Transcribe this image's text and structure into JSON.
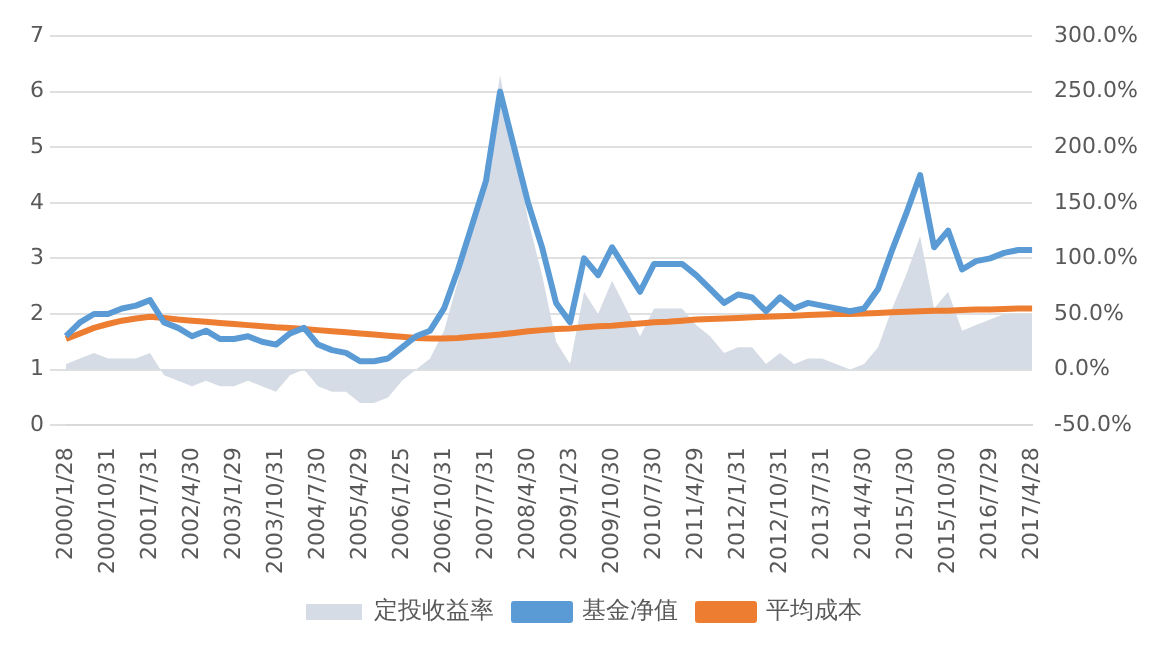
{
  "chart_data": {
    "type": "line",
    "categories": [
      "2000/1/28",
      null,
      null,
      "2000/10/31",
      null,
      null,
      "2001/7/31",
      null,
      null,
      "2002/4/30",
      null,
      null,
      "2003/1/29",
      null,
      null,
      "2003/10/31",
      null,
      null,
      "2004/7/30",
      null,
      null,
      "2005/4/29",
      null,
      null,
      "2006/1/25",
      null,
      null,
      "2006/10/31",
      null,
      null,
      "2007/7/31",
      null,
      null,
      "2008/4/30",
      null,
      null,
      "2009/1/23",
      null,
      null,
      "2009/10/30",
      null,
      null,
      "2010/7/30",
      null,
      null,
      "2011/4/29",
      null,
      null,
      "2012/1/31",
      null,
      null,
      "2012/10/31",
      null,
      null,
      "2013/7/31",
      null,
      null,
      "2014/4/30",
      null,
      null,
      "2015/1/30",
      null,
      null,
      "2015/10/30",
      null,
      null,
      "2016/7/29",
      null,
      null,
      "2017/4/28"
    ],
    "series": [
      {
        "name": "定投收益率",
        "type": "area",
        "axis": "y2",
        "color": "#d6dce5",
        "values": [
          5,
          10,
          15,
          10,
          10,
          10,
          15,
          -5,
          -10,
          -15,
          -10,
          -15,
          -15,
          -10,
          -15,
          -20,
          -5,
          0,
          -15,
          -20,
          -20,
          -30,
          -30,
          -25,
          -10,
          0,
          10,
          35,
          80,
          125,
          175,
          265,
          200,
          135,
          85,
          25,
          5,
          70,
          50,
          80,
          55,
          30,
          55,
          55,
          55,
          40,
          30,
          15,
          20,
          20,
          5,
          15,
          5,
          10,
          10,
          5,
          0,
          5,
          20,
          55,
          85,
          120,
          55,
          70,
          35,
          40,
          45,
          50,
          50,
          50
        ]
      },
      {
        "name": "基金净值",
        "color": "#5b9bd5",
        "values": [
          1.6,
          1.85,
          2.0,
          2.0,
          2.1,
          2.15,
          2.25,
          1.85,
          1.75,
          1.6,
          1.7,
          1.55,
          1.55,
          1.6,
          1.5,
          1.45,
          1.65,
          1.75,
          1.45,
          1.35,
          1.3,
          1.15,
          1.15,
          1.2,
          1.4,
          1.6,
          1.7,
          2.1,
          2.8,
          3.6,
          4.4,
          6.0,
          5.0,
          4.0,
          3.2,
          2.2,
          1.85,
          3.0,
          2.7,
          3.2,
          2.8,
          2.4,
          2.9,
          2.9,
          2.9,
          2.7,
          2.45,
          2.2,
          2.35,
          2.3,
          2.05,
          2.3,
          2.1,
          2.2,
          2.15,
          2.1,
          2.05,
          2.1,
          2.45,
          3.15,
          3.8,
          4.5,
          3.2,
          3.5,
          2.8,
          2.95,
          3.0,
          3.1,
          3.15,
          3.15
        ]
      },
      {
        "name": "平均成本",
        "color": "#ed7d31",
        "values": [
          1.55,
          1.65,
          1.75,
          1.82,
          1.88,
          1.92,
          1.95,
          1.93,
          1.9,
          1.88,
          1.86,
          1.84,
          1.82,
          1.8,
          1.78,
          1.76,
          1.75,
          1.73,
          1.71,
          1.69,
          1.67,
          1.65,
          1.63,
          1.61,
          1.59,
          1.57,
          1.56,
          1.56,
          1.57,
          1.59,
          1.61,
          1.63,
          1.66,
          1.69,
          1.71,
          1.73,
          1.74,
          1.76,
          1.78,
          1.79,
          1.81,
          1.83,
          1.85,
          1.86,
          1.88,
          1.9,
          1.91,
          1.92,
          1.93,
          1.94,
          1.95,
          1.96,
          1.97,
          1.98,
          1.99,
          2.0,
          2.0,
          2.01,
          2.02,
          2.03,
          2.04,
          2.05,
          2.06,
          2.06,
          2.07,
          2.08,
          2.08,
          2.09,
          2.1,
          2.1
        ]
      }
    ],
    "ylim": [
      0,
      7
    ],
    "yticks": [
      0,
      1,
      2,
      3,
      4,
      5,
      6,
      7
    ],
    "y2lim": [
      -50,
      300
    ],
    "y2ticks": [
      {
        "value": -50,
        "label": "-50.0%"
      },
      {
        "value": 0,
        "label": "0.0%"
      },
      {
        "value": 50,
        "label": "50.0%"
      },
      {
        "value": 100,
        "label": "100.0%"
      },
      {
        "value": 150,
        "label": "150.0%"
      },
      {
        "value": 200,
        "label": "200.0%"
      },
      {
        "value": 250,
        "label": "250.0%"
      },
      {
        "value": 300,
        "label": "300.0%"
      }
    ],
    "grid": "y",
    "legend": "bottom",
    "marker": "none"
  }
}
